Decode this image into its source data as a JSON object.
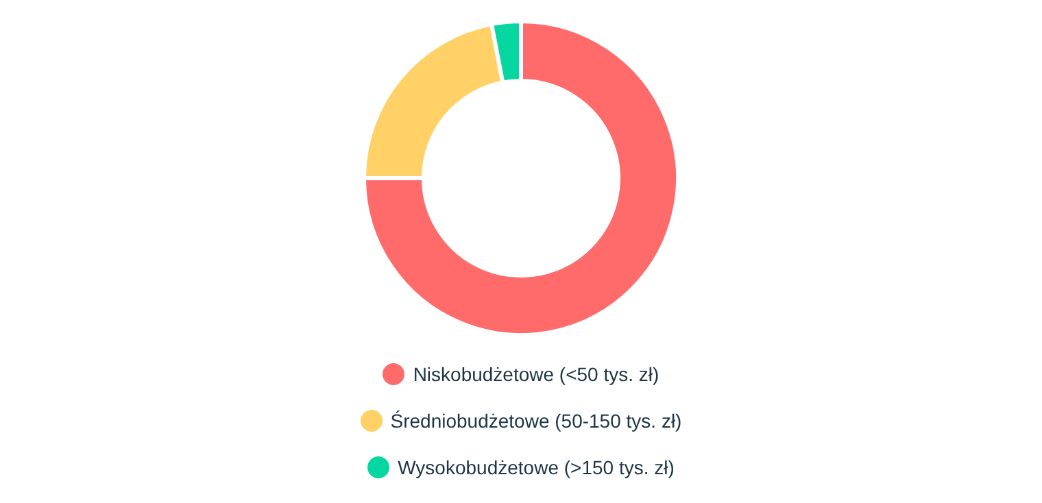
{
  "chart_data": {
    "type": "donut",
    "categories": [
      "Niskobudżetowe (<50 tys. zł)",
      "Średniobudżetowe (50-150 tys. zł)",
      "Wysokobudżetowe (>150 tys. zł)"
    ],
    "values": [
      75,
      22,
      3
    ],
    "colors": [
      "#ff6b6b",
      "#ffd166",
      "#06d6a0"
    ],
    "legend": "bottom"
  }
}
